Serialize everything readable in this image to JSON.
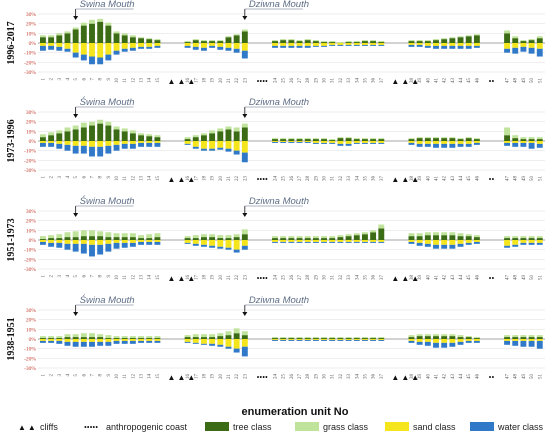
{
  "chart_data": {
    "type": "bar",
    "subtype": "stacked-diverging",
    "classes": [
      {
        "name": "tree class",
        "color": "#3b6b14"
      },
      {
        "name": "grass class",
        "color": "#bfe39a"
      },
      {
        "name": "sand class",
        "color": "#f4e51c"
      },
      {
        "name": "water class",
        "color": "#2f79c8"
      }
    ],
    "x_title": "enumeration unit No",
    "y_ticks": [
      "30%",
      "20%",
      "10%",
      "0%",
      "-10%",
      "-20%",
      "-30%"
    ],
    "ylim": [
      -30,
      30
    ],
    "groups": [
      {
        "units": [
          1,
          15
        ]
      },
      {
        "units": [
          16,
          23
        ]
      },
      {
        "units": [
          24,
          37
        ]
      },
      {
        "units": [
          38,
          46
        ]
      },
      {
        "units": [
          47,
          51
        ]
      }
    ],
    "mouths": [
      {
        "label": "Świna Mouth",
        "unit": 5
      },
      {
        "label": "Dziwna Mouth",
        "unit": 23
      }
    ],
    "cliff_markers": {
      "symbol": "▲ ▲ ▲",
      "after_units": [
        15,
        37
      ]
    },
    "anthropogenic_markers": [
      {
        "symbol": "••••",
        "after_unit": 23
      },
      {
        "symbol": "••",
        "after_unit": 46
      }
    ],
    "legend": {
      "cliffs": "cliffs",
      "cliffs_symbol": "▲ ▲",
      "anthropogenic": "anthropogenic coast",
      "anthropogenic_symbol": "•••••"
    },
    "panels": [
      {
        "period": "1996-2017",
        "tree": [
          6,
          6,
          8,
          10,
          14,
          18,
          20,
          22,
          18,
          10,
          8,
          6,
          5,
          4,
          3,
          1,
          3,
          2,
          2,
          2,
          6,
          8,
          12,
          2,
          3,
          3,
          2,
          3,
          2,
          1,
          1,
          0,
          1,
          1,
          2,
          2,
          1,
          2,
          2,
          2,
          3,
          4,
          5,
          6,
          7,
          8,
          10,
          5,
          2,
          3,
          5
        ],
        "grass": [
          2,
          2,
          2,
          2,
          2,
          3,
          4,
          3,
          3,
          2,
          2,
          2,
          1,
          1,
          1,
          1,
          1,
          1,
          1,
          1,
          1,
          1,
          2,
          1,
          1,
          1,
          1,
          1,
          1,
          1,
          1,
          1,
          1,
          1,
          1,
          1,
          1,
          1,
          1,
          1,
          1,
          1,
          1,
          1,
          1,
          1,
          3,
          2,
          1,
          1,
          2
        ],
        "sand": [
          -3,
          -3,
          -4,
          -6,
          -10,
          -12,
          -14,
          -15,
          -12,
          -8,
          -6,
          -5,
          -4,
          -4,
          -3,
          -3,
          -4,
          -5,
          -3,
          -4,
          -5,
          -6,
          -8,
          -3,
          -3,
          -3,
          -3,
          -3,
          -3,
          -3,
          -2,
          -2,
          -2,
          -2,
          -2,
          -2,
          -2,
          -2,
          -2,
          -3,
          -3,
          -3,
          -3,
          -3,
          -3,
          -3,
          -6,
          -5,
          -4,
          -5,
          -6
        ],
        "water": [
          -5,
          -4,
          -4,
          -3,
          -5,
          -6,
          -8,
          -7,
          -6,
          -4,
          -3,
          -3,
          -2,
          -2,
          -2,
          -2,
          -3,
          -3,
          -2,
          -3,
          -3,
          -4,
          -8,
          -2,
          -2,
          -2,
          -2,
          -2,
          -1,
          -1,
          -1,
          -1,
          -1,
          -1,
          -1,
          -1,
          -1,
          -2,
          -2,
          -2,
          -3,
          -3,
          -3,
          -3,
          -3,
          -2,
          -4,
          -6,
          -5,
          -6,
          -8
        ]
      },
      {
        "period": "1973-1996",
        "tree": [
          4,
          6,
          8,
          10,
          12,
          14,
          16,
          18,
          16,
          12,
          10,
          8,
          6,
          5,
          4,
          2,
          4,
          6,
          8,
          10,
          12,
          10,
          14,
          2,
          2,
          2,
          2,
          2,
          2,
          2,
          1,
          3,
          3,
          2,
          2,
          2,
          2,
          2,
          3,
          3,
          3,
          3,
          3,
          2,
          3,
          2,
          6,
          3,
          2,
          2,
          2
        ],
        "grass": [
          3,
          3,
          3,
          4,
          4,
          5,
          4,
          4,
          4,
          3,
          3,
          3,
          2,
          2,
          2,
          2,
          2,
          2,
          3,
          3,
          3,
          4,
          4,
          1,
          1,
          1,
          1,
          1,
          1,
          1,
          1,
          1,
          1,
          1,
          1,
          1,
          1,
          1,
          1,
          1,
          1,
          1,
          1,
          1,
          1,
          1,
          8,
          3,
          2,
          2,
          2
        ],
        "sand": [
          -2,
          -2,
          -3,
          -4,
          -5,
          -5,
          -6,
          -6,
          -5,
          -4,
          -3,
          -3,
          -2,
          -2,
          -2,
          -3,
          -6,
          -8,
          -8,
          -7,
          -8,
          -10,
          -12,
          -1,
          -1,
          -1,
          -1,
          -1,
          -2,
          -2,
          -2,
          -3,
          -3,
          -2,
          -2,
          -2,
          -2,
          -2,
          -3,
          -3,
          -3,
          -3,
          -3,
          -3,
          -3,
          -2,
          -2,
          -2,
          -2,
          -2,
          -3
        ],
        "water": [
          -4,
          -4,
          -5,
          -6,
          -8,
          -8,
          -10,
          -10,
          -8,
          -6,
          -5,
          -5,
          -4,
          -4,
          -4,
          -1,
          -2,
          -2,
          -2,
          -2,
          -3,
          -4,
          -10,
          -1,
          -1,
          -1,
          -1,
          -1,
          -1,
          -1,
          -1,
          -2,
          -2,
          -1,
          -1,
          -1,
          -1,
          -2,
          -3,
          -3,
          -4,
          -4,
          -4,
          -3,
          -3,
          -2,
          -3,
          -4,
          -4,
          -6,
          -4
        ]
      },
      {
        "period": "1951-1973",
        "tree": [
          1,
          2,
          2,
          3,
          3,
          4,
          4,
          4,
          3,
          3,
          3,
          3,
          2,
          2,
          3,
          2,
          2,
          3,
          3,
          2,
          2,
          3,
          6,
          2,
          2,
          2,
          2,
          2,
          2,
          2,
          2,
          3,
          4,
          5,
          6,
          8,
          12,
          4,
          4,
          5,
          5,
          5,
          5,
          4,
          4,
          3,
          2,
          2,
          2,
          2,
          2
        ],
        "grass": [
          3,
          3,
          4,
          5,
          6,
          6,
          6,
          5,
          5,
          4,
          4,
          4,
          3,
          4,
          4,
          2,
          3,
          3,
          3,
          3,
          3,
          3,
          5,
          2,
          2,
          2,
          2,
          2,
          2,
          2,
          2,
          2,
          2,
          2,
          2,
          2,
          4,
          3,
          3,
          3,
          3,
          3,
          3,
          3,
          2,
          2,
          2,
          2,
          2,
          2,
          2
        ],
        "sand": [
          -2,
          -3,
          -3,
          -4,
          -4,
          -4,
          -5,
          -5,
          -4,
          -3,
          -3,
          -3,
          -2,
          -2,
          -2,
          -3,
          -4,
          -5,
          -6,
          -7,
          -8,
          -10,
          -6,
          -2,
          -2,
          -2,
          -2,
          -2,
          -2,
          -2,
          -2,
          -2,
          -2,
          -2,
          -2,
          -2,
          -2,
          -2,
          -3,
          -4,
          -5,
          -5,
          -5,
          -4,
          -3,
          -2,
          -6,
          -5,
          -3,
          -3,
          -3
        ],
        "water": [
          -3,
          -4,
          -5,
          -6,
          -8,
          -10,
          -12,
          -10,
          -8,
          -6,
          -5,
          -4,
          -3,
          -3,
          -3,
          -1,
          -2,
          -2,
          -2,
          -2,
          -2,
          -3,
          -4,
          -1,
          -1,
          -1,
          -1,
          -1,
          -1,
          -1,
          -1,
          -1,
          -1,
          -1,
          -1,
          -1,
          -1,
          -2,
          -3,
          -3,
          -4,
          -4,
          -4,
          -3,
          -2,
          -2,
          -2,
          -2,
          -2,
          -2,
          -2
        ]
      },
      {
        "period": "1938-1951",
        "tree": [
          1,
          1,
          1,
          2,
          2,
          2,
          2,
          2,
          1,
          1,
          1,
          1,
          1,
          1,
          1,
          2,
          2,
          2,
          2,
          3,
          4,
          6,
          4,
          1,
          1,
          1,
          1,
          1,
          1,
          1,
          1,
          1,
          1,
          1,
          1,
          1,
          1,
          2,
          3,
          3,
          3,
          3,
          3,
          2,
          2,
          1,
          2,
          2,
          2,
          2,
          2
        ],
        "grass": [
          2,
          2,
          2,
          3,
          3,
          4,
          4,
          3,
          3,
          2,
          2,
          2,
          2,
          2,
          2,
          2,
          3,
          3,
          3,
          3,
          4,
          5,
          4,
          1,
          1,
          1,
          1,
          1,
          1,
          1,
          1,
          1,
          1,
          1,
          1,
          1,
          1,
          2,
          2,
          2,
          2,
          2,
          2,
          2,
          1,
          1,
          2,
          2,
          2,
          2,
          2
        ],
        "sand": [
          -2,
          -2,
          -2,
          -3,
          -3,
          -3,
          -3,
          -3,
          -3,
          -2,
          -2,
          -2,
          -2,
          -2,
          -2,
          -3,
          -4,
          -5,
          -5,
          -6,
          -8,
          -10,
          -8,
          -1,
          -1,
          -1,
          -1,
          -1,
          -1,
          -1,
          -1,
          -1,
          -1,
          -1,
          -1,
          -1,
          -1,
          -2,
          -3,
          -3,
          -4,
          -4,
          -4,
          -3,
          -2,
          -2,
          -2,
          -2,
          -2,
          -2,
          -2
        ],
        "water": [
          -2,
          -2,
          -3,
          -4,
          -5,
          -5,
          -5,
          -4,
          -4,
          -3,
          -3,
          -3,
          -2,
          -2,
          -2,
          -1,
          -1,
          -1,
          -2,
          -2,
          -2,
          -4,
          -10,
          -1,
          -1,
          -1,
          -1,
          -1,
          -1,
          -1,
          -1,
          -1,
          -1,
          -1,
          -1,
          -1,
          -1,
          -2,
          -3,
          -4,
          -5,
          -5,
          -4,
          -3,
          -2,
          -2,
          -4,
          -5,
          -6,
          -6,
          -8
        ]
      }
    ]
  }
}
